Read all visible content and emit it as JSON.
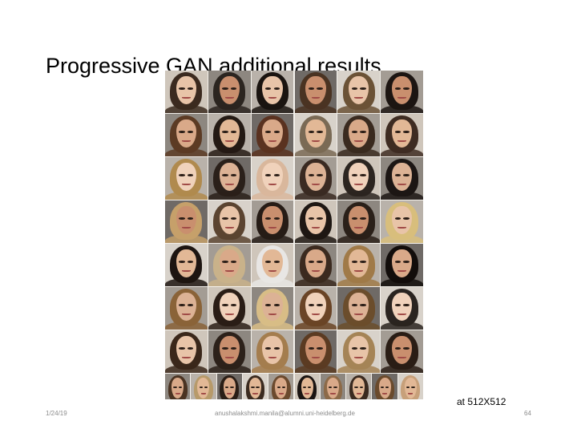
{
  "slide": {
    "title": "Progressive GAN additional results",
    "caption": "at 512X512",
    "footer": {
      "date": "1/24/19",
      "author": "anushalakshmi.manila@alumni.uni-heidelberg.de",
      "page_number": "64"
    }
  },
  "colors": {
    "background": "#ffffff",
    "title_text": "#000000",
    "footer_text": "#8c8c8c"
  },
  "image_grid": {
    "rows": 8,
    "columns": 6,
    "last_row_columns": 10,
    "faces": [
      [
        "#3b2a1f",
        "#2b2520",
        "#1a1410",
        "#4a3322",
        "#6b5236",
        "#1c1512"
      ],
      [
        "#5c3b24",
        "#241a14",
        "#5a3220",
        "#7a6a55",
        "#3a2a1f",
        "#3e2c22"
      ],
      [
        "#b08a4e",
        "#2a201a",
        "#d9b79c",
        "#3a2a22",
        "#2c2520",
        "#1c1614"
      ],
      [
        "#c6a06a",
        "#5b4430",
        "#261c16",
        "#1e1713",
        "#2a2019",
        "#d8be7c"
      ],
      [
        "#1d1511",
        "#c9b28a",
        "#e8e6e4",
        "#3b2a1f",
        "#a07a48",
        "#120d0b"
      ],
      [
        "#8a6338",
        "#2a1d16",
        "#d8bd86",
        "#6a4426",
        "#6b4d2c",
        "#2a2420"
      ],
      [
        "#3a271a",
        "#2c211a",
        "#a47d4e",
        "#5b3b22",
        "#a58456",
        "#2a1d15"
      ],
      [
        "#4a3322",
        "#b79a6a",
        "#2a1e17",
        "#3b2b20",
        "#6b4a2e",
        "#1a1412",
        "#8c6a48",
        "#3a2a20",
        "#6a4a2c",
        "#c7a07a"
      ]
    ]
  }
}
